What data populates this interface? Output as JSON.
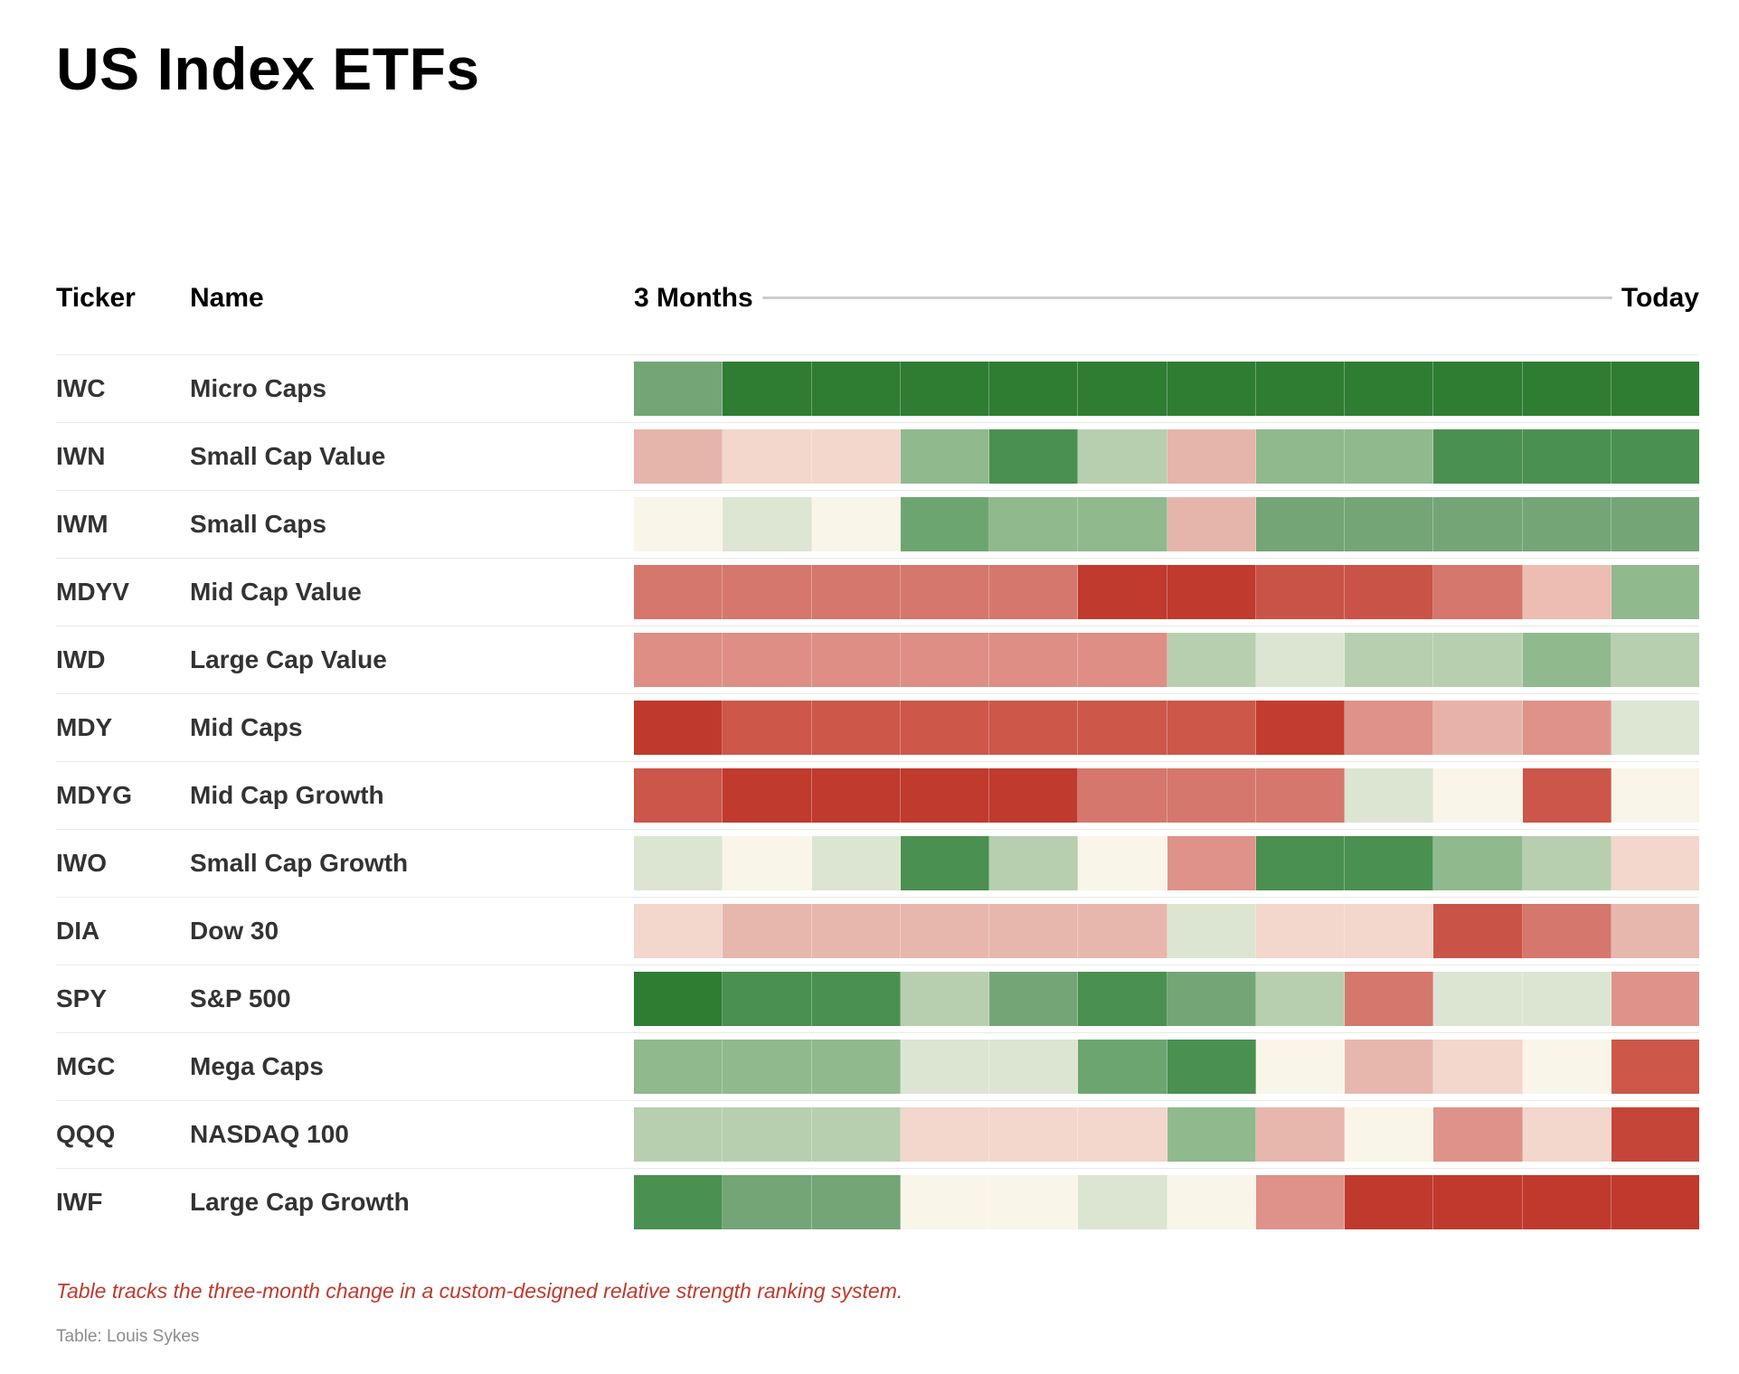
{
  "title": "US Index ETFs",
  "header": {
    "ticker": "Ticker",
    "name": "Name",
    "start": "3 Months",
    "end": "Today"
  },
  "footnote": "Table tracks the three-month change in a custom-designed relative strength ranking system.",
  "credit": "Table: Louis Sykes",
  "chart_data": {
    "type": "heatmap",
    "title": "US Index ETFs",
    "x_start_label": "3 Months",
    "x_end_label": "Today",
    "columns": 12,
    "legend": "color encodes relative strength change: dark green = strongest gain, dark red = weakest",
    "color_scale": {
      "strongest_green": "#2e7d33",
      "green": "#4a9050",
      "mid_green": "#74a577",
      "sage_green": "#90b98e",
      "light_green": "#b7cfae",
      "pale_green": "#dce5d1",
      "neutral_cream": "#faf5e9",
      "pale_pink": "#f3d6cc",
      "pink": "#e7b7ad",
      "salmon": "#e5b4ab",
      "rose": "#de9289",
      "light_red": "#d5776c",
      "red": "#cd5749",
      "dark_red": "#c0392d"
    },
    "rows": [
      {
        "ticker": "IWC",
        "name": "Micro Caps",
        "colors": [
          "#74a577",
          "#2e7d33",
          "#2e7d33",
          "#2e7d33",
          "#2e7d33",
          "#2e7d33",
          "#2e7d33",
          "#2e7d33",
          "#2e7d33",
          "#2e7d33",
          "#2e7d33",
          "#2e7d33"
        ]
      },
      {
        "ticker": "IWN",
        "name": "Small Cap Value",
        "colors": [
          "#e5b4ab",
          "#f3d6cc",
          "#f3d6cc",
          "#90b98e",
          "#4a9050",
          "#b7cfae",
          "#e5b4ab",
          "#90b98e",
          "#90b98e",
          "#4a9050",
          "#4a9050",
          "#4a9050"
        ]
      },
      {
        "ticker": "IWM",
        "name": "Small Caps",
        "colors": [
          "#faf5e9",
          "#dde6d2",
          "#faf5e9",
          "#6da571",
          "#90b98e",
          "#90b98e",
          "#e5b4ab",
          "#74a577",
          "#74a577",
          "#74a577",
          "#74a577",
          "#74a577"
        ]
      },
      {
        "ticker": "MDYV",
        "name": "Mid Cap Value",
        "colors": [
          "#d5776c",
          "#d5776c",
          "#d5776c",
          "#d5776c",
          "#d5776c",
          "#c03a2e",
          "#c03a2e",
          "#ca5347",
          "#ca5347",
          "#d5776c",
          "#edbdb1",
          "#90b98e"
        ]
      },
      {
        "ticker": "IWD",
        "name": "Large Cap Value",
        "colors": [
          "#de8e85",
          "#de8e85",
          "#de8e85",
          "#de8e85",
          "#de8e85",
          "#de8e85",
          "#b7cfae",
          "#dce5d1",
          "#b7cfae",
          "#b7cfae",
          "#90b98e",
          "#b7cfae"
        ]
      },
      {
        "ticker": "MDY",
        "name": "Mid Caps",
        "colors": [
          "#c0392d",
          "#cd5749",
          "#cd5749",
          "#cd5749",
          "#cd5749",
          "#cd5749",
          "#cd5749",
          "#c23c2f",
          "#de9289",
          "#e7b3a9",
          "#de9289",
          "#dde6d2"
        ]
      },
      {
        "ticker": "MDYG",
        "name": "Mid Cap Growth",
        "colors": [
          "#cb5649",
          "#c03a2e",
          "#c03a2e",
          "#c03a2e",
          "#c03a2e",
          "#d5776c",
          "#d5776c",
          "#d5776c",
          "#dce5d1",
          "#faf5e9",
          "#cb5649",
          "#faf5e9"
        ]
      },
      {
        "ticker": "IWO",
        "name": "Small Cap Growth",
        "colors": [
          "#dce5d1",
          "#faf5e9",
          "#dce5d1",
          "#4a9050",
          "#b7cfae",
          "#faf5e9",
          "#de9289",
          "#4a9050",
          "#4a9050",
          "#90b98e",
          "#b7cfae",
          "#f3d6cc"
        ]
      },
      {
        "ticker": "DIA",
        "name": "Dow 30",
        "colors": [
          "#f3d6cc",
          "#e7b7ad",
          "#e7b7ad",
          "#e7b7ad",
          "#e7b7ad",
          "#e7b7ad",
          "#dce5d1",
          "#f3d6cc",
          "#f3d6cc",
          "#ca5347",
          "#d5776c",
          "#e7b7ad"
        ]
      },
      {
        "ticker": "SPY",
        "name": "S&P 500",
        "colors": [
          "#2e7d33",
          "#4a9050",
          "#4a9050",
          "#b7cfae",
          "#74a577",
          "#4a9050",
          "#74a577",
          "#b7cfae",
          "#d5776c",
          "#dce5d1",
          "#dce5d1",
          "#de9289"
        ]
      },
      {
        "ticker": "MGC",
        "name": "Mega Caps",
        "colors": [
          "#90b98e",
          "#90b98e",
          "#90b98e",
          "#dce5d1",
          "#dce5d1",
          "#6da571",
          "#4a9050",
          "#faf5e9",
          "#e7b7ad",
          "#f3d6cc",
          "#faf5e9",
          "#cd5749"
        ]
      },
      {
        "ticker": "QQQ",
        "name": "NASDAQ 100",
        "colors": [
          "#b7cfae",
          "#b7cfae",
          "#b7cfae",
          "#f3d6cc",
          "#f3d6cc",
          "#f3d6cc",
          "#90b98e",
          "#e7b7ad",
          "#faf5e9",
          "#de9289",
          "#f3d6cc",
          "#c54538"
        ]
      },
      {
        "ticker": "IWF",
        "name": "Large Cap Growth",
        "colors": [
          "#4a9050",
          "#74a577",
          "#74a577",
          "#faf5e9",
          "#faf5e9",
          "#dce5d1",
          "#faf5e9",
          "#de9289",
          "#c0392d",
          "#c0392d",
          "#c0392d",
          "#c0392d"
        ]
      }
    ]
  }
}
